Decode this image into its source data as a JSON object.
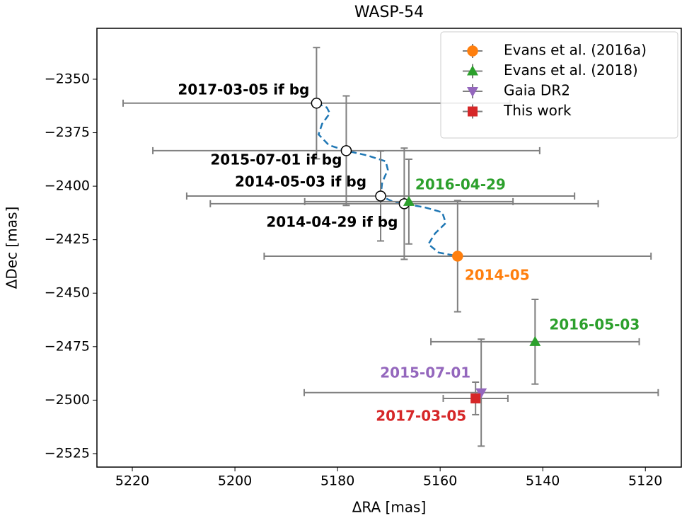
{
  "chart_data": {
    "type": "scatter",
    "title": "WASP-54",
    "x_label": "ΔRA [mas]",
    "y_label": "ΔDec [mas]",
    "xlim": [
      5226.9,
      5113.0
    ],
    "ylim": [
      -2531.3,
      -2326.2
    ],
    "xticks": [
      5220,
      5200,
      5180,
      5160,
      5140,
      5120
    ],
    "yticks": [
      {
        "value": -2350,
        "label": "−2350"
      },
      {
        "value": -2375,
        "label": "−2375"
      },
      {
        "value": -2400,
        "label": "−2400"
      },
      {
        "value": -2425,
        "label": "−2425"
      },
      {
        "value": -2450,
        "label": "−2450"
      },
      {
        "value": -2475,
        "label": "−2475"
      },
      {
        "value": -2500,
        "label": "−2500"
      },
      {
        "value": -2525,
        "label": "−2525"
      }
    ],
    "errorbar_color": "#808080",
    "legend": "upper right",
    "track": {
      "color": "#1f77b4",
      "dashed": true,
      "x": [
        5184.1,
        5182.1,
        5181.5,
        5183.0,
        5183.7,
        5181.7,
        5178.3,
        5174.1,
        5170.6,
        5170.2,
        5171.3,
        5171.6,
        5169.2,
        5167.0,
        5163.0,
        5159.6,
        5158.9,
        5161.0,
        5162.3,
        5160.3,
        5156.6
      ],
      "y": [
        -2361.2,
        -2363.2,
        -2365.9,
        -2370.8,
        -2375.8,
        -2380.8,
        -2383.4,
        -2385.7,
        -2388.4,
        -2392.3,
        -2398.3,
        -2404.6,
        -2407.2,
        -2408.2,
        -2409.9,
        -2412.2,
        -2417.2,
        -2422.1,
        -2427.1,
        -2431.0,
        -2432.7
      ]
    },
    "series": [
      {
        "marker": "open-circle",
        "color": "#000000",
        "labels": [
          "2014-04-29 if bg",
          "2014-05-03 if bg",
          "2015-07-01 if bg",
          "2017-03-05 if bg"
        ],
        "x": [
          5167.0,
          5171.6,
          5178.3,
          5184.1
        ],
        "y": [
          -2408.2,
          -2404.6,
          -2383.4,
          -2361.2
        ],
        "xerr": [
          37.8,
          37.8,
          37.7,
          37.7
        ],
        "yerr": [
          26,
          21,
          25.6,
          26
        ]
      },
      {
        "name": "Evans et al. (2016a)",
        "marker": "circle",
        "color": "#ff7f0e",
        "labels": [
          "2014-05"
        ],
        "x": [
          5156.6
        ],
        "y": [
          -2432.7
        ],
        "xerr": [
          37.7
        ],
        "yerr": [
          26
        ]
      },
      {
        "name": "Evans et al. (2018)",
        "marker": "triangle-up",
        "color": "#2ca02c",
        "labels": [
          "2016-04-29",
          "2016-05-03"
        ],
        "x": [
          5166.1,
          5141.5
        ],
        "y": [
          -2407.2,
          -2472.7
        ],
        "xerr": [
          20.3,
          20.3
        ],
        "yerr": [
          19.8,
          19.8
        ]
      },
      {
        "name": "Gaia DR2",
        "marker": "triangle-down",
        "color": "#9467bd",
        "labels": [
          "2015-07-01"
        ],
        "x": [
          5152.0
        ],
        "y": [
          -2496.5
        ],
        "xerr": [
          34.5
        ],
        "yerr": [
          25
        ]
      },
      {
        "name": "This work",
        "marker": "square",
        "color": "#d62728",
        "labels": [
          "2017-03-05"
        ],
        "x": [
          5153.1
        ],
        "y": [
          -2499.2
        ],
        "xerr": [
          6.3
        ],
        "yerr": [
          7.6
        ]
      }
    ]
  }
}
